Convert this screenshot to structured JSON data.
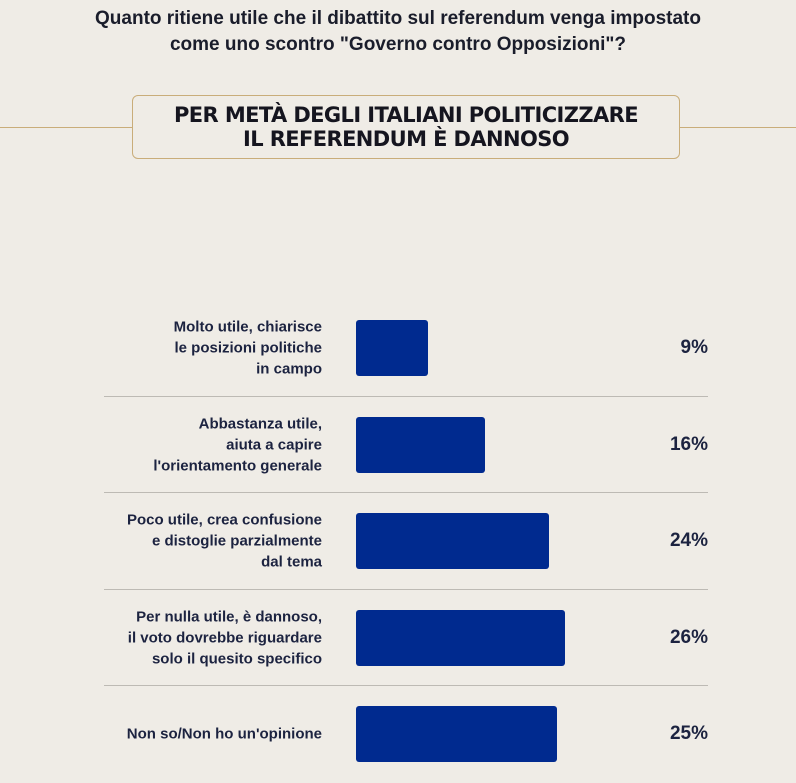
{
  "chart_data": {
    "type": "bar",
    "orientation": "horizontal",
    "title": "Quanto ritiene utile che il dibattito sul referendum venga impostato come uno scontro \"Governo contro Opposizioni\"?",
    "subtitle": "PER METÀ DEGLI ITALIANI POLITICIZZARE IL REFERENDUM È DANNOSO",
    "title_lines": [
      "Quanto ritiene utile che il dibattito sul referendum venga impostato",
      "come uno scontro \"Governo contro Opposizioni\"?"
    ],
    "subtitle_lines": [
      "PER METÀ DEGLI ITALIANI POLITICIZZARE",
      "IL REFERENDUM È DANNOSO"
    ],
    "categories": [
      [
        "Molto utile, chiarisce",
        "le posizioni politiche",
        "in campo"
      ],
      [
        "Abbastanza utile,",
        "aiuta a capire",
        "l'orientamento generale"
      ],
      [
        "Poco utile, crea confusione",
        "e distoglie parzialmente",
        "dal tema"
      ],
      [
        "Per nulla utile, è dannoso,",
        "il voto dovrebbe riguardare",
        "solo il quesito specifico"
      ],
      [
        "Non so/Non ho un'opinione"
      ]
    ],
    "values": [
      9,
      16,
      24,
      26,
      25
    ],
    "value_labels": [
      "9%",
      "16%",
      "24%",
      "26%",
      "25%"
    ],
    "xlim": [
      0,
      100
    ],
    "grid": false,
    "colors": {
      "bar": "#002a8f",
      "text": "#1c2340",
      "accent": "#c9ad7a",
      "background": "#efece6"
    }
  }
}
